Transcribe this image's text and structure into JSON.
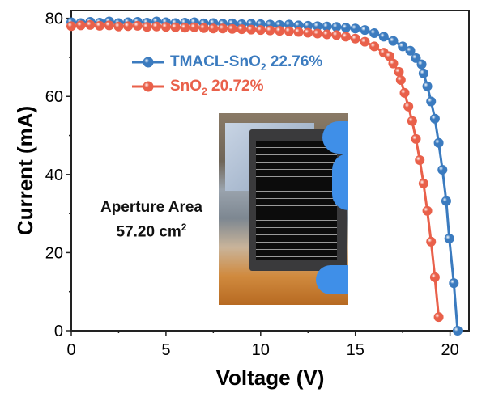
{
  "chart_data": {
    "type": "scatter",
    "xlabel": "Voltage (V)",
    "ylabel": "Current (mA)",
    "xlim": [
      0,
      21
    ],
    "ylim": [
      0,
      82
    ],
    "xticks": [
      0,
      5,
      10,
      15,
      20
    ],
    "yticks": [
      0,
      20,
      40,
      60,
      80
    ],
    "grid": false,
    "legend_position": "top-right",
    "series": [
      {
        "name": "TMACL-SnO2 22.76%",
        "color": "#3b7bbf",
        "x": [
          0,
          0.5,
          1,
          1.5,
          2,
          2.5,
          3,
          3.5,
          4,
          4.5,
          5,
          5.5,
          6,
          6.5,
          7,
          7.5,
          8,
          8.5,
          9,
          9.5,
          10,
          10.5,
          11,
          11.5,
          12,
          12.5,
          13,
          13.5,
          14,
          14.5,
          15,
          15.5,
          16,
          16.5,
          17,
          17.5,
          17.9,
          18.2,
          18.5,
          18.6,
          18.8,
          19.0,
          19.2,
          19.4,
          19.6,
          19.8,
          19.96,
          20.2,
          20.4
        ],
        "y": [
          79.0,
          78.8,
          79.1,
          78.9,
          79.2,
          78.8,
          79.0,
          79.1,
          78.9,
          79.2,
          79.0,
          78.8,
          78.9,
          79.0,
          78.7,
          78.8,
          78.6,
          78.7,
          78.5,
          78.6,
          78.5,
          78.4,
          78.3,
          78.4,
          78.2,
          78.1,
          78.0,
          77.9,
          77.8,
          77.6,
          77.4,
          77.0,
          76.2,
          75.3,
          74.2,
          72.8,
          71.7,
          69.8,
          68.2,
          65.9,
          62.6,
          58.7,
          54.3,
          48.1,
          41.2,
          33.2,
          23.6,
          12.2,
          0
        ]
      },
      {
        "name": "SnO2 20.72%",
        "color": "#e9604a",
        "x": [
          0,
          0.5,
          1,
          1.5,
          2,
          2.5,
          3,
          3.5,
          4,
          4.5,
          5,
          5.5,
          6,
          6.5,
          7,
          7.5,
          8,
          8.5,
          9,
          9.5,
          10,
          10.5,
          11,
          11.5,
          12,
          12.5,
          13,
          13.5,
          14,
          14.5,
          15,
          15.5,
          16,
          16.5,
          16.8,
          17.0,
          17.3,
          17.4,
          17.6,
          17.8,
          18.0,
          18.2,
          18.4,
          18.6,
          18.8,
          19.0,
          19.2,
          19.4
        ],
        "y": [
          78.0,
          78.2,
          78.3,
          78.1,
          78.2,
          77.9,
          78.0,
          78.1,
          77.8,
          77.9,
          77.8,
          77.7,
          77.6,
          77.7,
          77.5,
          77.4,
          77.4,
          77.3,
          77.2,
          77.1,
          77.0,
          76.9,
          76.8,
          76.7,
          76.5,
          76.3,
          76.1,
          75.9,
          75.7,
          75.3,
          74.8,
          74.0,
          72.8,
          71.2,
          70.3,
          68.4,
          66.3,
          64.2,
          60.9,
          57.4,
          53.7,
          49.1,
          43.7,
          37.7,
          30.7,
          22.8,
          13.7,
          3.5
        ]
      }
    ],
    "legend": [
      {
        "main": "TMACL-SnO",
        "sub": "2",
        "rest": " 22.76%"
      },
      {
        "main": "SnO",
        "sub": "2",
        "rest": " 20.72%"
      }
    ],
    "annotation": {
      "line1": "Aperture Area",
      "line2_main": "57.20 cm",
      "line2_sup": "2"
    }
  }
}
